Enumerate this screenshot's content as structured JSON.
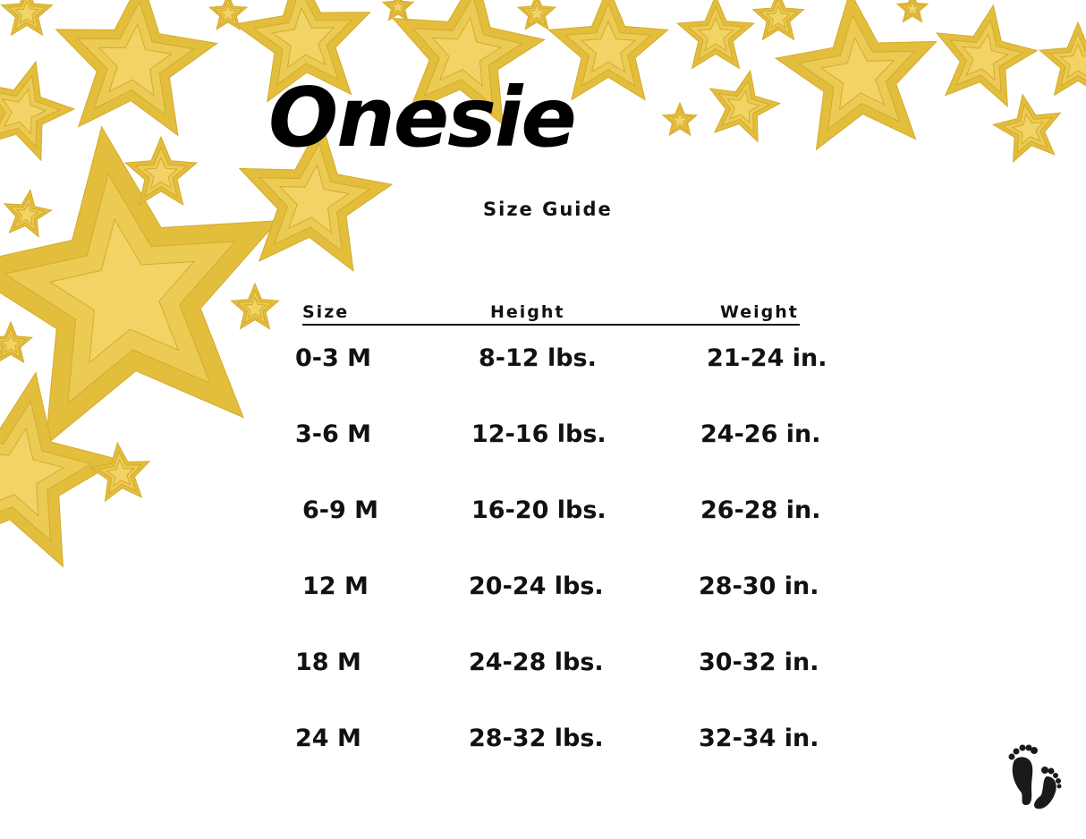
{
  "title": "Onesie",
  "subtitle": "Size Guide",
  "table": {
    "headers": [
      "Size",
      "Height",
      "Weight"
    ],
    "rows": [
      [
        "0-3 M",
        "8-12 lbs.",
        "21-24 in."
      ],
      [
        "3-6 M",
        "12-16 lbs.",
        "24-26 in."
      ],
      [
        "6-9 M",
        "16-20 lbs.",
        "26-28 in."
      ],
      [
        "12 M",
        "20-24 lbs.",
        "28-30 in."
      ],
      [
        "18 M",
        "24-28 lbs.",
        "30-32 in."
      ],
      [
        "24 M",
        "28-32 lbs.",
        "32-34 in."
      ]
    ]
  },
  "decor": {
    "star_color": "#e8c64a",
    "icon": "baby-footprints-icon"
  }
}
